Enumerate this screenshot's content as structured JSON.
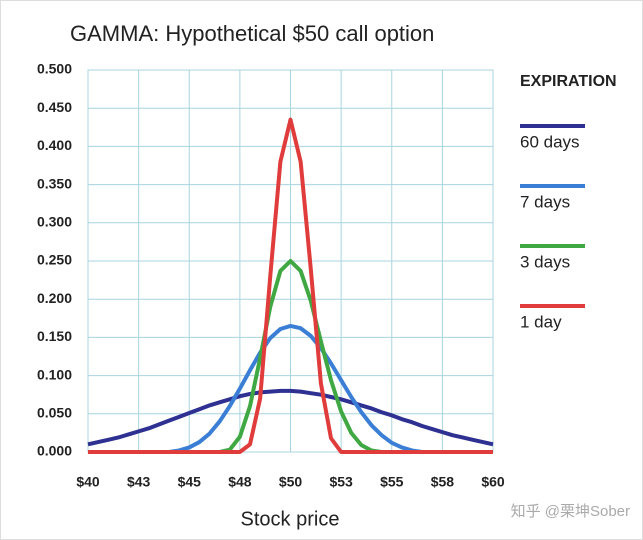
{
  "chart_data": {
    "type": "line",
    "title": "GAMMA: Hypothetical $50 call option",
    "x_label": "Stock price",
    "legend_title": "EXPIRATION",
    "legend": "right",
    "grid": true,
    "watermark": "知乎 @栗坤Sober",
    "x": [
      40,
      40.5,
      41,
      41.5,
      42,
      42.5,
      43,
      43.5,
      44,
      44.5,
      45,
      45.5,
      46,
      46.5,
      47,
      47.5,
      48,
      48.5,
      49,
      49.5,
      50,
      50.5,
      51,
      51.5,
      52,
      52.5,
      53,
      53.5,
      54,
      54.5,
      55,
      55.5,
      56,
      56.5,
      57,
      57.5,
      58,
      58.5,
      59,
      59.5,
      60
    ],
    "xlim": [
      40,
      60
    ],
    "xticks": [
      {
        "value": 40,
        "label": "$40"
      },
      {
        "value": 42.5,
        "label": "$43"
      },
      {
        "value": 45,
        "label": "$45"
      },
      {
        "value": 47.5,
        "label": "$48"
      },
      {
        "value": 50,
        "label": "$50"
      },
      {
        "value": 52.5,
        "label": "$53"
      },
      {
        "value": 55,
        "label": "$55"
      },
      {
        "value": 57.5,
        "label": "$58"
      },
      {
        "value": 60,
        "label": "$60"
      }
    ],
    "ylim": [
      0,
      0.5
    ],
    "yticks": [
      {
        "value": 0,
        "label": "0.000"
      },
      {
        "value": 0.05,
        "label": "0.050"
      },
      {
        "value": 0.1,
        "label": "0.100"
      },
      {
        "value": 0.15,
        "label": "0.150"
      },
      {
        "value": 0.2,
        "label": "0.200"
      },
      {
        "value": 0.25,
        "label": "0.250"
      },
      {
        "value": 0.3,
        "label": "0.300"
      },
      {
        "value": 0.35,
        "label": "0.350"
      },
      {
        "value": 0.4,
        "label": "0.400"
      },
      {
        "value": 0.45,
        "label": "0.450"
      },
      {
        "value": 0.5,
        "label": "0.500"
      }
    ],
    "series": [
      {
        "name": "60 days",
        "color": "#2e3192",
        "values": [
          0.01,
          0.013,
          0.016,
          0.019,
          0.023,
          0.027,
          0.031,
          0.036,
          0.041,
          0.046,
          0.051,
          0.056,
          0.061,
          0.065,
          0.069,
          0.073,
          0.076,
          0.078,
          0.079,
          0.08,
          0.08,
          0.079,
          0.077,
          0.075,
          0.072,
          0.069,
          0.065,
          0.061,
          0.057,
          0.052,
          0.048,
          0.043,
          0.039,
          0.034,
          0.03,
          0.026,
          0.022,
          0.019,
          0.016,
          0.013,
          0.01
        ]
      },
      {
        "name": "7 days",
        "color": "#3a7fd5",
        "values": [
          0,
          0,
          0,
          0,
          0,
          0,
          0,
          0,
          0,
          0.002,
          0.006,
          0.013,
          0.024,
          0.04,
          0.06,
          0.083,
          0.107,
          0.13,
          0.149,
          0.161,
          0.165,
          0.162,
          0.152,
          0.136,
          0.116,
          0.094,
          0.072,
          0.052,
          0.035,
          0.022,
          0.012,
          0.006,
          0.002,
          0,
          0,
          0,
          0,
          0,
          0,
          0,
          0
        ]
      },
      {
        "name": "3 days",
        "color": "#3fa843",
        "values": [
          0,
          0,
          0,
          0,
          0,
          0,
          0,
          0,
          0,
          0,
          0,
          0,
          0,
          0,
          0.003,
          0.02,
          0.06,
          0.123,
          0.19,
          0.237,
          0.25,
          0.237,
          0.198,
          0.145,
          0.094,
          0.053,
          0.025,
          0.009,
          0.002,
          0,
          0,
          0,
          0,
          0,
          0,
          0,
          0,
          0,
          0,
          0,
          0
        ]
      },
      {
        "name": "1 day",
        "color": "#e03c3c",
        "values": [
          0,
          0,
          0,
          0,
          0,
          0,
          0,
          0,
          0,
          0,
          0,
          0,
          0,
          0,
          0,
          0,
          0.01,
          0.07,
          0.23,
          0.38,
          0.435,
          0.38,
          0.24,
          0.09,
          0.018,
          0,
          0,
          0,
          0,
          0,
          0,
          0,
          0,
          0,
          0,
          0,
          0,
          0,
          0,
          0,
          0
        ]
      }
    ]
  }
}
